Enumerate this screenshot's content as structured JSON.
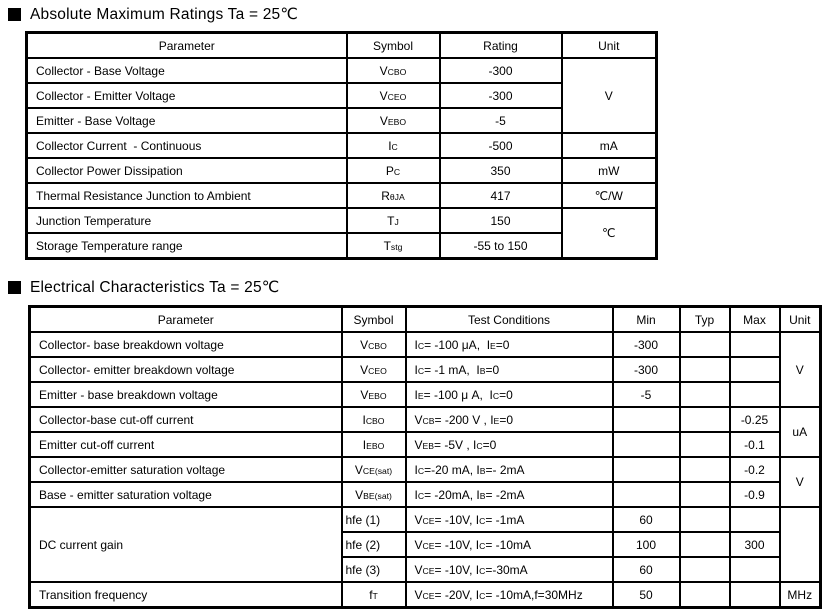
{
  "sections": [
    {
      "title": "Absolute Maximum Ratings Ta = 25℃",
      "table": {
        "headers": [
          "Parameter",
          "Symbol",
          "Rating",
          "Unit"
        ],
        "rows": [
          [
            {
              "k": "parameter",
              "t": "Collector - Base Voltage",
              "a": "l"
            },
            {
              "k": "symbol",
              "t": "V~CBO~"
            },
            {
              "k": "rating",
              "t": "-300"
            },
            {
              "k": "unit",
              "t": "V",
              "rs": 3
            }
          ],
          [
            {
              "k": "parameter",
              "t": "Collector - Emitter Voltage",
              "a": "l"
            },
            {
              "k": "symbol",
              "t": "V~CEO~"
            },
            {
              "k": "rating",
              "t": "-300"
            }
          ],
          [
            {
              "k": "parameter",
              "t": "Emitter - Base Voltage",
              "a": "l"
            },
            {
              "k": "symbol",
              "t": "V~EBO~"
            },
            {
              "k": "rating",
              "t": "-5"
            }
          ],
          [
            {
              "k": "parameter",
              "t": "Collector Current  - Continuous",
              "a": "l"
            },
            {
              "k": "symbol",
              "t": "I~C~"
            },
            {
              "k": "rating",
              "t": "-500"
            },
            {
              "k": "unit",
              "t": "mA"
            }
          ],
          [
            {
              "k": "parameter",
              "t": "Collector Power Dissipation",
              "a": "l"
            },
            {
              "k": "symbol",
              "t": "P~C~"
            },
            {
              "k": "rating",
              "t": "350"
            },
            {
              "k": "unit",
              "t": "mW"
            }
          ],
          [
            {
              "k": "parameter",
              "t": "Thermal Resistance Junction to Ambient",
              "a": "l"
            },
            {
              "k": "symbol",
              "t": "R~θJA~"
            },
            {
              "k": "rating",
              "t": "417"
            },
            {
              "k": "unit",
              "t": "℃/W"
            }
          ],
          [
            {
              "k": "parameter",
              "t": "Junction Temperature",
              "a": "l"
            },
            {
              "k": "symbol",
              "t": "T~J~"
            },
            {
              "k": "rating",
              "t": "150"
            },
            {
              "k": "unit",
              "t": "℃",
              "rs": 2
            }
          ],
          [
            {
              "k": "parameter",
              "t": "Storage Temperature range",
              "a": "l"
            },
            {
              "k": "symbol",
              "t": "T~stg~"
            },
            {
              "k": "rating",
              "t": "-55 to 150"
            }
          ]
        ]
      }
    },
    {
      "title": "Electrical Characteristics Ta = 25℃",
      "table": {
        "headers": [
          "Parameter",
          "Symbol",
          "Test Conditions",
          "Min",
          "Typ",
          "Max",
          "Unit"
        ],
        "rows": [
          [
            {
              "k": "parameter",
              "t": "Collector- base breakdown voltage",
              "a": "l"
            },
            {
              "k": "symbol",
              "t": "V~CBO~"
            },
            {
              "k": "test-conditions",
              "t": "I~C~= -100 μA,  I~E~=0",
              "a": "l"
            },
            {
              "k": "min",
              "t": "-300"
            },
            {
              "k": "typ",
              "t": ""
            },
            {
              "k": "max",
              "t": ""
            },
            {
              "k": "unit",
              "t": "V",
              "rs": 3
            }
          ],
          [
            {
              "k": "parameter",
              "t": "Collector- emitter breakdown voltage",
              "a": "l"
            },
            {
              "k": "symbol",
              "t": "V~CEO~"
            },
            {
              "k": "test-conditions",
              "t": "I~C~= -1 mA,  I~B~=0",
              "a": "l"
            },
            {
              "k": "min",
              "t": "-300"
            },
            {
              "k": "typ",
              "t": ""
            },
            {
              "k": "max",
              "t": ""
            }
          ],
          [
            {
              "k": "parameter",
              "t": "Emitter - base breakdown voltage",
              "a": "l"
            },
            {
              "k": "symbol",
              "t": "V~EBO~"
            },
            {
              "k": "test-conditions",
              "t": "I~E~= -100 μ A,  I~C~=0",
              "a": "l"
            },
            {
              "k": "min",
              "t": "-5"
            },
            {
              "k": "typ",
              "t": ""
            },
            {
              "k": "max",
              "t": ""
            }
          ],
          [
            {
              "k": "parameter",
              "t": "Collector-base cut-off current",
              "a": "l"
            },
            {
              "k": "symbol",
              "t": "I~CBO~"
            },
            {
              "k": "test-conditions",
              "t": "V~CB~= -200 V , I~E~=0",
              "a": "l"
            },
            {
              "k": "min",
              "t": ""
            },
            {
              "k": "typ",
              "t": ""
            },
            {
              "k": "max",
              "t": "-0.25"
            },
            {
              "k": "unit",
              "t": "uA",
              "rs": 2
            }
          ],
          [
            {
              "k": "parameter",
              "t": "Emitter cut-off current",
              "a": "l"
            },
            {
              "k": "symbol",
              "t": "I~EBO~"
            },
            {
              "k": "test-conditions",
              "t": "V~EB~= -5V , I~C~=0",
              "a": "l"
            },
            {
              "k": "min",
              "t": ""
            },
            {
              "k": "typ",
              "t": ""
            },
            {
              "k": "max",
              "t": "-0.1"
            }
          ],
          [
            {
              "k": "parameter",
              "t": "Collector-emitter saturation voltage",
              "a": "l"
            },
            {
              "k": "symbol",
              "t": "V~CE(sat)~"
            },
            {
              "k": "test-conditions",
              "t": "I~C~=-20 mA, I~B~=- 2mA",
              "a": "l"
            },
            {
              "k": "min",
              "t": ""
            },
            {
              "k": "typ",
              "t": ""
            },
            {
              "k": "max",
              "t": "-0.2"
            },
            {
              "k": "unit",
              "t": "V",
              "rs": 2
            }
          ],
          [
            {
              "k": "parameter",
              "t": "Base - emitter saturation voltage",
              "a": "l"
            },
            {
              "k": "symbol",
              "t": "V~BE(sat)~"
            },
            {
              "k": "test-conditions",
              "t": "I~C~= -20mA, I~B~= -2mA",
              "a": "l"
            },
            {
              "k": "min",
              "t": ""
            },
            {
              "k": "typ",
              "t": ""
            },
            {
              "k": "max",
              "t": "-0.9"
            }
          ],
          [
            {
              "k": "parameter",
              "t": "DC current gain",
              "a": "l",
              "rs": 3
            },
            {
              "k": "symbol",
              "t": "hfe (1)",
              "a": "ls"
            },
            {
              "k": "test-conditions",
              "t": "V~CE~= -10V, I~C~= -1mA",
              "a": "l"
            },
            {
              "k": "min",
              "t": "60"
            },
            {
              "k": "typ",
              "t": ""
            },
            {
              "k": "max",
              "t": ""
            },
            {
              "k": "unit",
              "t": "",
              "rs": 3
            }
          ],
          [
            {
              "k": "symbol",
              "t": "hfe (2)",
              "a": "ls"
            },
            {
              "k": "test-conditions",
              "t": "V~CE~= -10V, I~C~= -10mA",
              "a": "l"
            },
            {
              "k": "min",
              "t": "100"
            },
            {
              "k": "typ",
              "t": ""
            },
            {
              "k": "max",
              "t": "300"
            }
          ],
          [
            {
              "k": "symbol",
              "t": "hfe (3)",
              "a": "ls"
            },
            {
              "k": "test-conditions",
              "t": "V~CE~= -10V, I~C~=-30mA",
              "a": "l"
            },
            {
              "k": "min",
              "t": "60"
            },
            {
              "k": "typ",
              "t": ""
            },
            {
              "k": "max",
              "t": ""
            }
          ],
          [
            {
              "k": "parameter",
              "t": "Transition frequency",
              "a": "l"
            },
            {
              "k": "symbol",
              "t": "f~T~"
            },
            {
              "k": "test-conditions",
              "t": "V~CE~= -20V, I~C~= -10mA,f=30MHz",
              "a": "l"
            },
            {
              "k": "min",
              "t": "50"
            },
            {
              "k": "typ",
              "t": ""
            },
            {
              "k": "max",
              "t": ""
            },
            {
              "k": "unit",
              "t": "MHz"
            }
          ]
        ]
      }
    }
  ]
}
